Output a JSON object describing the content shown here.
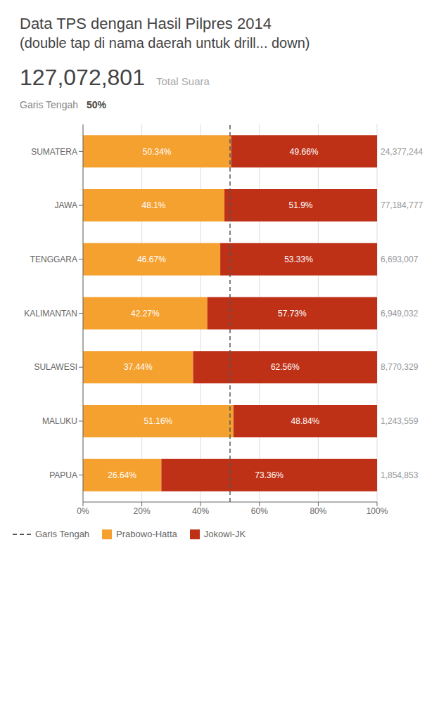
{
  "chart_data": {
    "type": "bar",
    "orientation": "horizontal",
    "stacked": true,
    "title": "Data TPS dengan Hasil Pilpres 2014",
    "subtitle": "(double tap di nama daerah untuk drill... down)",
    "annotations": [
      "127,072,801",
      "Total Suara"
    ],
    "categories": [
      "SUMATERA",
      "JAWA",
      "TENGGARA",
      "KALIMANTAN",
      "SULAWESI",
      "MALUKU",
      "PAPUA"
    ],
    "series": [
      {
        "name": "Prabowo-Hatta",
        "color": "#F5A130",
        "values": [
          50.34,
          48.1,
          46.67,
          42.27,
          37.44,
          51.16,
          26.64
        ],
        "value_labels": [
          "50.34%",
          "48.1%",
          "46.67%",
          "42.27%",
          "37.44%",
          "51.16%",
          "26.64%"
        ]
      },
      {
        "name": "Jokowi-JK",
        "color": "#BE3117",
        "values": [
          49.66,
          51.9,
          53.33,
          57.73,
          62.56,
          48.84,
          73.36
        ],
        "value_labels": [
          "49.66%",
          "51.9%",
          "53.33%",
          "57.73%",
          "62.56%",
          "48.84%",
          "73.36%"
        ]
      }
    ],
    "totals": [
      "24,377,244",
      "77,184,777",
      "6,693,007",
      "6,949,032",
      "8,770,329",
      "1,243,559",
      "1,854,853"
    ],
    "reference_line": {
      "name": "Garis Tengah",
      "value": 50,
      "value_label": "50%",
      "color": "#555555",
      "line_style": "dashed"
    },
    "xlim": [
      0,
      100
    ],
    "xticks": [
      {
        "value": 0,
        "label": "0%"
      },
      {
        "value": 20,
        "label": "20%"
      },
      {
        "value": 40,
        "label": "40%"
      },
      {
        "value": 60,
        "label": "60%"
      },
      {
        "value": 80,
        "label": "80%"
      },
      {
        "value": 100,
        "label": "100%"
      }
    ],
    "grid": true,
    "data_labels": true,
    "legend": "lower left"
  }
}
